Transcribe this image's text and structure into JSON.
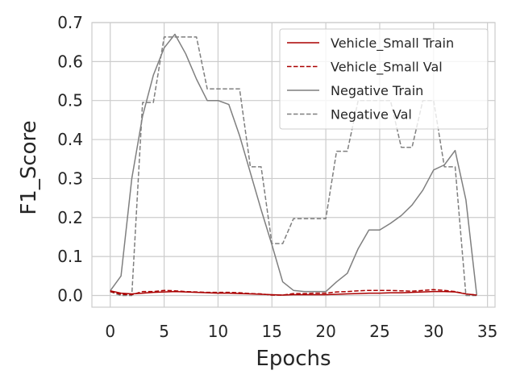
{
  "chart_data": {
    "type": "line",
    "xlabel": "Epochs",
    "ylabel": "F1_Score",
    "xlim": [
      -1.7,
      35.7
    ],
    "ylim": [
      -0.03,
      0.7
    ],
    "xticks": [
      0,
      5,
      10,
      15,
      20,
      25,
      30,
      35
    ],
    "yticks": [
      0.0,
      0.1,
      0.2,
      0.3,
      0.4,
      0.5,
      0.6,
      0.7
    ],
    "grid": true,
    "legend_position": "top-right",
    "series": [
      {
        "name": "Vehicle_Small Train",
        "color": "#aa0000",
        "style": "solid",
        "x": [
          0,
          1,
          2,
          3,
          4,
          5,
          6,
          7,
          8,
          9,
          10,
          11,
          12,
          13,
          14,
          15,
          16,
          17,
          18,
          19,
          20,
          21,
          22,
          23,
          24,
          25,
          26,
          27,
          28,
          29,
          30,
          31,
          32,
          33,
          34
        ],
        "y": [
          0.012,
          0.006,
          0.004,
          0.006,
          0.008,
          0.009,
          0.01,
          0.009,
          0.008,
          0.007,
          0.006,
          0.006,
          0.005,
          0.004,
          0.003,
          0.002,
          0.001,
          0.002,
          0.002,
          0.002,
          0.002,
          0.003,
          0.004,
          0.005,
          0.006,
          0.006,
          0.007,
          0.007,
          0.008,
          0.009,
          0.01,
          0.01,
          0.009,
          0.004,
          0.001
        ]
      },
      {
        "name": "Vehicle_Small Val",
        "color": "#aa0000",
        "style": "dashed",
        "x": [
          0,
          1,
          2,
          3,
          4,
          5,
          6,
          7,
          8,
          9,
          10,
          11,
          12,
          13,
          14,
          15,
          16,
          17,
          18,
          19,
          20,
          21,
          22,
          23,
          24,
          25,
          26,
          27,
          28,
          29,
          30,
          31,
          32,
          33,
          34
        ],
        "y": [
          0.01,
          0.003,
          0.002,
          0.01,
          0.01,
          0.013,
          0.012,
          0.01,
          0.009,
          0.008,
          0.008,
          0.008,
          0.007,
          0.005,
          0.004,
          0.001,
          0.001,
          0.005,
          0.005,
          0.006,
          0.006,
          0.009,
          0.01,
          0.012,
          0.013,
          0.013,
          0.013,
          0.012,
          0.011,
          0.013,
          0.015,
          0.013,
          0.01,
          0.004,
          0.001
        ]
      },
      {
        "name": "Negative Train",
        "color": "#7f7f7f",
        "style": "solid",
        "x": [
          0,
          1,
          2,
          3,
          4,
          5,
          6,
          7,
          8,
          9,
          10,
          11,
          12,
          13,
          14,
          15,
          16,
          17,
          18,
          19,
          20,
          21,
          22,
          23,
          24,
          25,
          26,
          27,
          28,
          29,
          30,
          31,
          32,
          33,
          34
        ],
        "y": [
          0.012,
          0.05,
          0.3,
          0.46,
          0.565,
          0.635,
          0.67,
          0.62,
          0.555,
          0.5,
          0.5,
          0.49,
          0.41,
          0.315,
          0.22,
          0.13,
          0.035,
          0.013,
          0.01,
          0.01,
          0.01,
          0.035,
          0.057,
          0.12,
          0.168,
          0.168,
          0.185,
          0.205,
          0.232,
          0.27,
          0.322,
          0.335,
          0.372,
          0.245,
          0.002
        ]
      },
      {
        "name": "Negative Val",
        "color": "#7f7f7f",
        "style": "dashed",
        "x": [
          0,
          1,
          2,
          3,
          4,
          5,
          6,
          7,
          8,
          9,
          10,
          11,
          12,
          13,
          14,
          15,
          16,
          17,
          18,
          19,
          20,
          21,
          22,
          23,
          24,
          25,
          26,
          27,
          28,
          29,
          30,
          31,
          32,
          33,
          34
        ],
        "y": [
          0.01,
          0.0,
          0.0,
          0.495,
          0.495,
          0.663,
          0.663,
          0.663,
          0.663,
          0.53,
          0.53,
          0.53,
          0.53,
          0.33,
          0.33,
          0.133,
          0.133,
          0.197,
          0.197,
          0.197,
          0.197,
          0.37,
          0.37,
          0.5,
          0.5,
          0.5,
          0.5,
          0.38,
          0.38,
          0.5,
          0.5,
          0.33,
          0.33,
          0.0,
          0.0
        ]
      }
    ]
  }
}
